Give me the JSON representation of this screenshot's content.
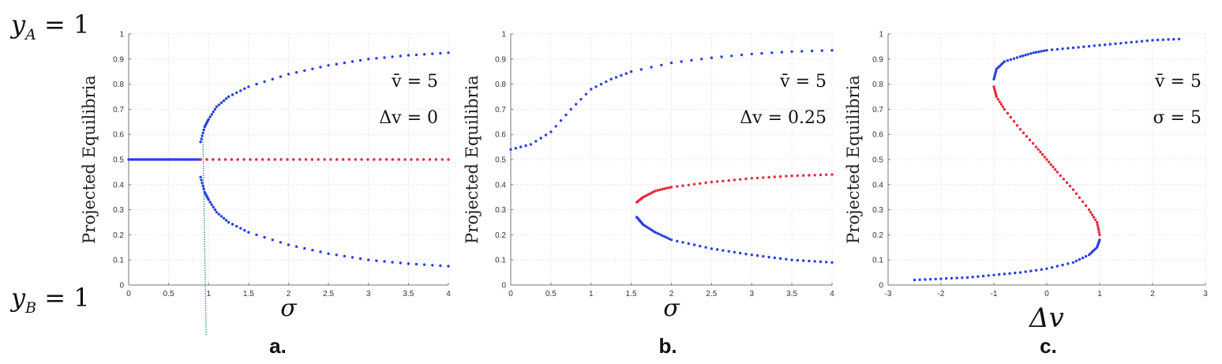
{
  "side_labels": {
    "top": "y_A = 1",
    "bottom": "y_B = 1"
  },
  "colors": {
    "stable": "#2b3fe0",
    "unstable": "#e8283c",
    "marker": "#2a9a8f"
  },
  "chart_data": [
    {
      "type": "scatter",
      "panel_label": "a.",
      "ylabel": "Projected Equilibria",
      "xlabel": "σ",
      "xlim": [
        0,
        4
      ],
      "ylim": [
        0,
        1
      ],
      "xticks": [
        "0",
        "0.5",
        "1",
        "1.5",
        "2",
        "2.5",
        "3",
        "3.5",
        "4"
      ],
      "yticks": [
        "0",
        "0.1",
        "0.2",
        "0.3",
        "0.4",
        "0.5",
        "0.6",
        "0.7",
        "0.8",
        "0.9",
        "1"
      ],
      "annotations": [
        "v̄ = 5",
        "Δv = 0"
      ],
      "grid": true,
      "bifurcation_x": 0.9,
      "series": [
        {
          "color": "stable",
          "x": [
            0,
            0.9
          ],
          "y": [
            0.5,
            0.5
          ]
        },
        {
          "color": "stable",
          "x": [
            0.9,
            0.95,
            1.0,
            1.1,
            1.25,
            1.5,
            2.0,
            2.5,
            3.0,
            3.5,
            4.0
          ],
          "y": [
            0.57,
            0.63,
            0.66,
            0.71,
            0.75,
            0.79,
            0.84,
            0.875,
            0.9,
            0.915,
            0.925
          ]
        },
        {
          "color": "stable",
          "x": [
            0.9,
            0.95,
            1.0,
            1.1,
            1.25,
            1.5,
            2.0,
            2.5,
            3.0,
            3.5,
            4.0
          ],
          "y": [
            0.43,
            0.37,
            0.34,
            0.29,
            0.25,
            0.21,
            0.16,
            0.125,
            0.1,
            0.085,
            0.075
          ]
        },
        {
          "color": "unstable",
          "x": [
            0.9,
            4.0
          ],
          "y": [
            0.5,
            0.5
          ]
        }
      ]
    },
    {
      "type": "scatter",
      "panel_label": "b.",
      "ylabel": "Projected Equilibria",
      "xlabel": "σ",
      "xlim": [
        0,
        4
      ],
      "ylim": [
        0,
        1
      ],
      "xticks": [
        "0",
        "0.5",
        "1",
        "1.5",
        "2",
        "2.5",
        "3",
        "3.5",
        "4"
      ],
      "yticks": [
        "0",
        "0.1",
        "0.2",
        "0.3",
        "0.4",
        "0.5",
        "0.6",
        "0.7",
        "0.8",
        "0.9",
        "1"
      ],
      "annotations": [
        "v̄ = 5",
        "Δv = 0.25"
      ],
      "grid": true,
      "series": [
        {
          "color": "stable",
          "x": [
            0,
            0.25,
            0.5,
            0.75,
            1.0,
            1.25,
            1.5,
            2.0,
            2.5,
            3.0,
            3.5,
            4.0
          ],
          "y": [
            0.54,
            0.56,
            0.61,
            0.7,
            0.78,
            0.82,
            0.85,
            0.885,
            0.905,
            0.92,
            0.93,
            0.935
          ]
        },
        {
          "color": "unstable",
          "x": [
            1.57,
            1.65,
            1.8,
            2.0,
            2.5,
            3.0,
            3.5,
            4.0
          ],
          "y": [
            0.33,
            0.35,
            0.375,
            0.39,
            0.41,
            0.425,
            0.435,
            0.44
          ]
        },
        {
          "color": "stable",
          "x": [
            1.57,
            1.65,
            1.8,
            2.0,
            2.5,
            3.0,
            3.5,
            4.0
          ],
          "y": [
            0.27,
            0.24,
            0.21,
            0.18,
            0.145,
            0.12,
            0.1,
            0.09
          ]
        }
      ]
    },
    {
      "type": "scatter",
      "panel_label": "c.",
      "ylabel": "Projected Equilibria",
      "xlabel": "Δv",
      "xlim": [
        -3,
        3
      ],
      "ylim": [
        0,
        1
      ],
      "xticks": [
        "-3",
        "-2",
        "-1",
        "0",
        "1",
        "2",
        "3"
      ],
      "yticks": [
        "0",
        "0.1",
        "0.2",
        "0.3",
        "0.4",
        "0.5",
        "0.6",
        "0.7",
        "0.8",
        "0.9",
        "1"
      ],
      "annotations": [
        "v̄ = 5",
        "σ = 5"
      ],
      "grid": true,
      "series": [
        {
          "color": "stable",
          "x": [
            -2.5,
            -2.0,
            -1.5,
            -1.0,
            -0.5,
            0.0,
            0.5,
            0.8,
            0.95,
            1.0
          ],
          "y": [
            0.02,
            0.025,
            0.03,
            0.04,
            0.05,
            0.065,
            0.09,
            0.12,
            0.15,
            0.18
          ]
        },
        {
          "color": "unstable",
          "x": [
            1.0,
            0.95,
            0.8,
            0.5,
            0.2,
            0.0,
            -0.2,
            -0.5,
            -0.8,
            -0.95,
            -1.0
          ],
          "y": [
            0.2,
            0.25,
            0.3,
            0.38,
            0.45,
            0.5,
            0.55,
            0.62,
            0.7,
            0.75,
            0.79
          ]
        },
        {
          "color": "stable",
          "x": [
            -1.0,
            -0.95,
            -0.8,
            -0.5,
            -0.25,
            0.0,
            0.5,
            1.0,
            1.5,
            2.0,
            2.5
          ],
          "y": [
            0.82,
            0.86,
            0.89,
            0.91,
            0.925,
            0.935,
            0.945,
            0.955,
            0.965,
            0.975,
            0.98
          ]
        }
      ]
    }
  ]
}
